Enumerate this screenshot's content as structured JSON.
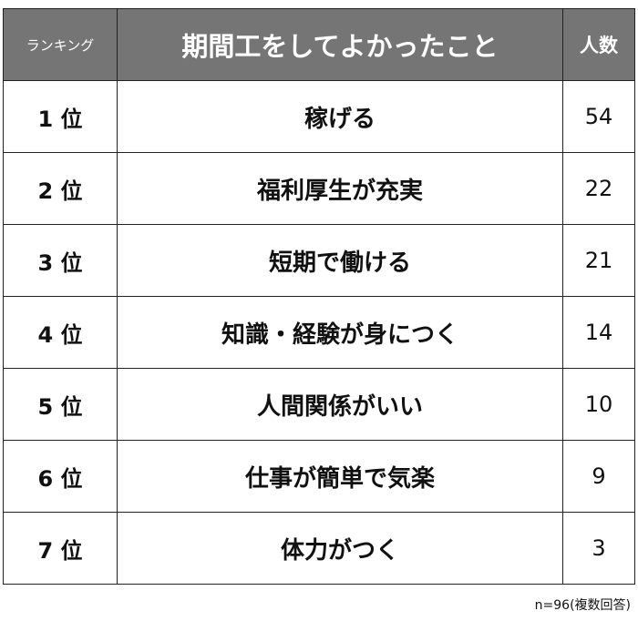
{
  "headers": {
    "rank": "ランキング",
    "item": "期間工をしてよかったこと",
    "count": "人数"
  },
  "rows": [
    {
      "rank": "1 位",
      "item": "稼げる",
      "count": "54"
    },
    {
      "rank": "2 位",
      "item": "福利厚生が充実",
      "count": "22"
    },
    {
      "rank": "3 位",
      "item": "短期で働ける",
      "count": "21"
    },
    {
      "rank": "4 位",
      "item": "知識・経験が身につく",
      "count": "14"
    },
    {
      "rank": "5 位",
      "item": "人間関係がいい",
      "count": "10"
    },
    {
      "rank": "6 位",
      "item": "仕事が簡単で気楽",
      "count": "9"
    },
    {
      "rank": "7 位",
      "item": "体力がつく",
      "count": "3"
    }
  ],
  "note": "n=96(複数回答)",
  "colors": {
    "header_bg": "#757575",
    "header_text": "#ffffff"
  }
}
